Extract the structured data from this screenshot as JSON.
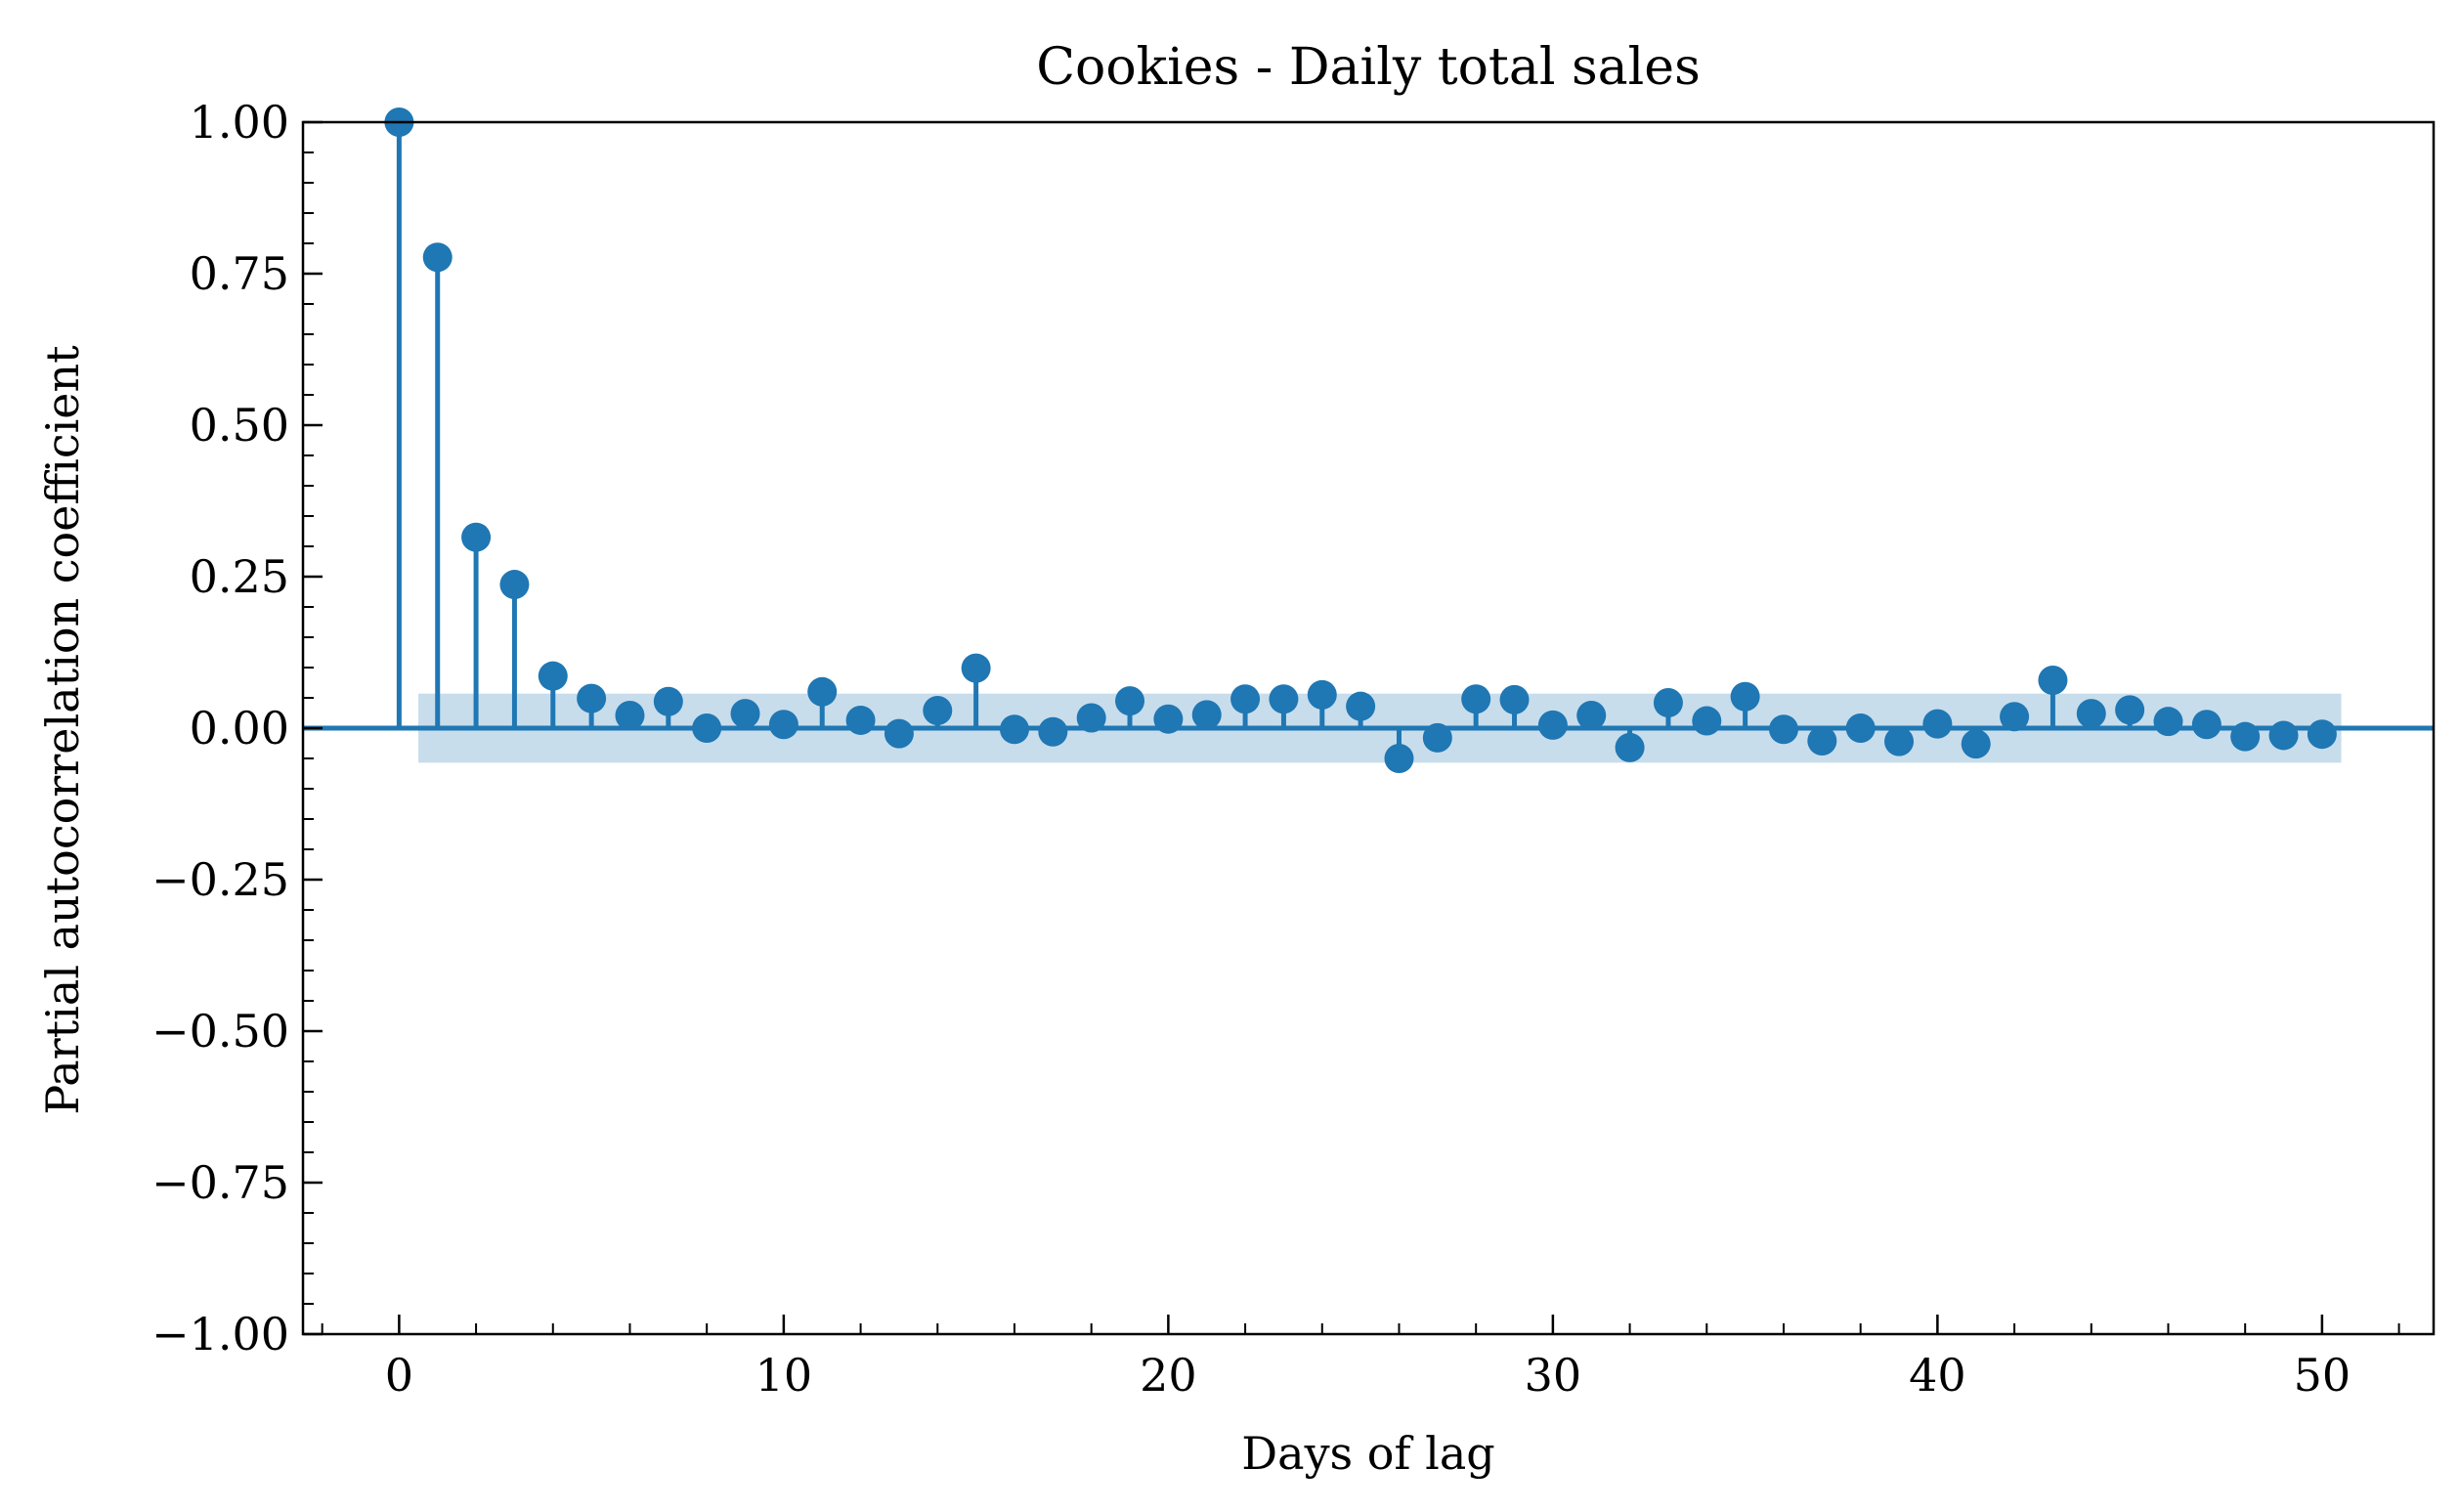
{
  "chart_data": {
    "type": "stem",
    "title": "Cookies - Daily total sales",
    "xlabel": "Days of lag",
    "ylabel": "Partial autocorrelation coefficient",
    "xlim": [
      -2.5,
      52.9
    ],
    "ylim": [
      -1.0,
      1.0
    ],
    "x_ticks": [
      0,
      10,
      20,
      30,
      40,
      50
    ],
    "y_ticks": [
      -1.0,
      -0.75,
      -0.5,
      -0.25,
      0.0,
      0.25,
      0.5,
      0.75,
      1.0
    ],
    "x_tick_labels": [
      "0",
      "10",
      "20",
      "30",
      "40",
      "50"
    ],
    "y_tick_labels": [
      "−1.00",
      "−0.75",
      "−0.50",
      "−0.25",
      "0.00",
      "0.25",
      "0.50",
      "0.75",
      "1.00"
    ],
    "confidence_band": [
      -0.057,
      0.057
    ],
    "color": "#1f77b4",
    "band_color": "#1f77b4",
    "grid": false,
    "series": [
      {
        "x": [
          0,
          1,
          2,
          3,
          4,
          5,
          6,
          7,
          8,
          9,
          10,
          11,
          12,
          13,
          14,
          15,
          16,
          17,
          18,
          19,
          20,
          21,
          22,
          23,
          24,
          25,
          26,
          27,
          28,
          29,
          30,
          31,
          32,
          33,
          34,
          35,
          36,
          37,
          38,
          39,
          40,
          41,
          42,
          43,
          44,
          45,
          46,
          47,
          48,
          49,
          50
        ],
        "values": [
          1.0,
          0.777,
          0.315,
          0.237,
          0.086,
          0.049,
          0.021,
          0.044,
          0.0,
          0.024,
          0.006,
          0.06,
          0.013,
          -0.009,
          0.029,
          0.099,
          -0.002,
          -0.006,
          0.017,
          0.045,
          0.015,
          0.022,
          0.048,
          0.048,
          0.055,
          0.036,
          -0.05,
          -0.016,
          0.048,
          0.047,
          0.005,
          0.021,
          -0.032,
          0.042,
          0.012,
          0.052,
          -0.002,
          -0.021,
          0.0,
          -0.022,
          0.007,
          -0.026,
          0.019,
          0.079,
          0.024,
          0.03,
          0.011,
          0.006,
          -0.014,
          -0.012,
          -0.01
        ]
      }
    ]
  }
}
